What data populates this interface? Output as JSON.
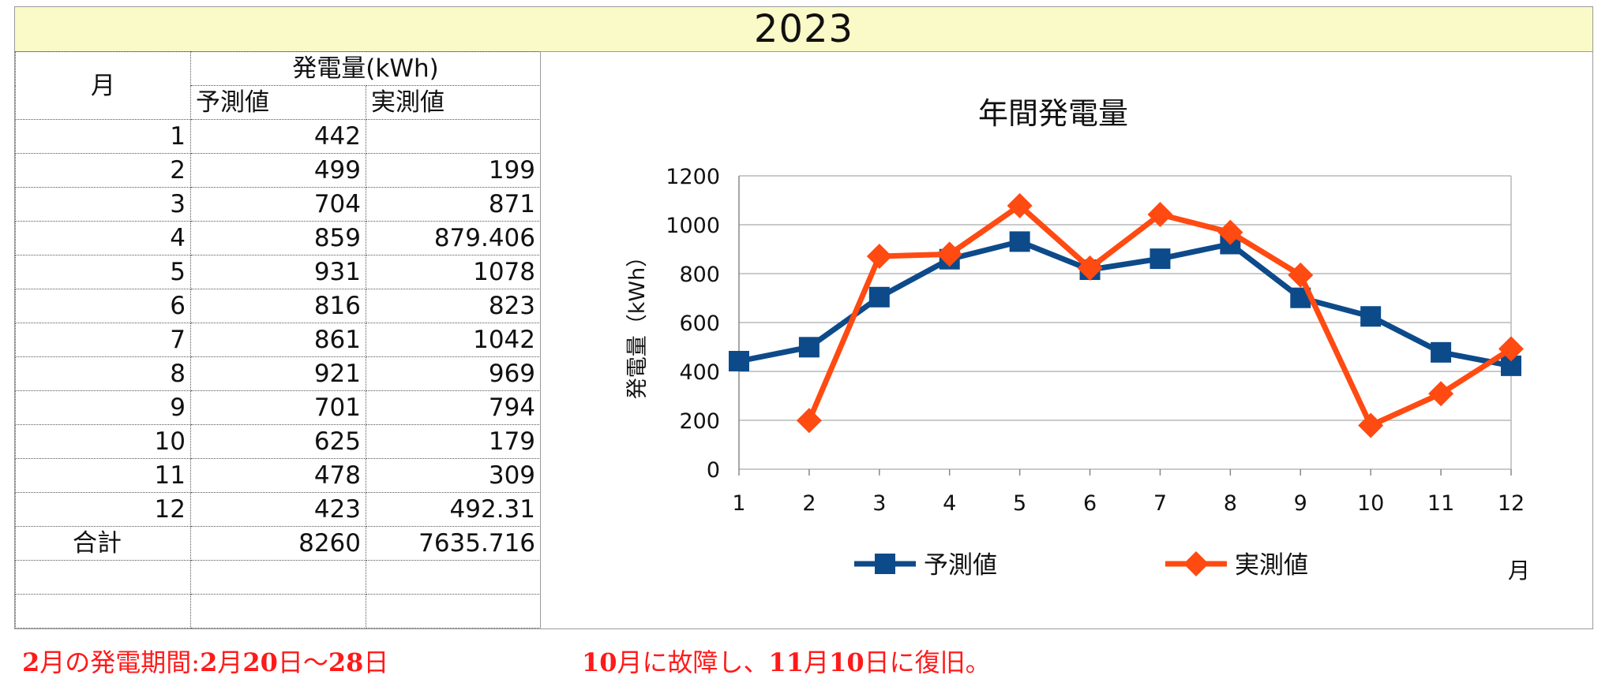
{
  "year_title": "2023",
  "table": {
    "month_header": "月",
    "group_header": "発電量(kWh)",
    "forecast_header": "予測値",
    "actual_header": "実測値",
    "rows": [
      {
        "month": "1",
        "forecast": "442",
        "actual": ""
      },
      {
        "month": "2",
        "forecast": "499",
        "actual": "199"
      },
      {
        "month": "3",
        "forecast": "704",
        "actual": "871"
      },
      {
        "month": "4",
        "forecast": "859",
        "actual": "879.406"
      },
      {
        "month": "5",
        "forecast": "931",
        "actual": "1078"
      },
      {
        "month": "6",
        "forecast": "816",
        "actual": "823"
      },
      {
        "month": "7",
        "forecast": "861",
        "actual": "1042"
      },
      {
        "month": "8",
        "forecast": "921",
        "actual": "969"
      },
      {
        "month": "9",
        "forecast": "701",
        "actual": "794"
      },
      {
        "month": "10",
        "forecast": "625",
        "actual": "179"
      },
      {
        "month": "11",
        "forecast": "478",
        "actual": "309"
      },
      {
        "month": "12",
        "forecast": "423",
        "actual": "492.31"
      }
    ],
    "total_label": "合計",
    "total_forecast": "8260",
    "total_actual": "7635.716"
  },
  "chart_data": {
    "type": "line",
    "title": "年間発電量",
    "xlabel": "月",
    "ylabel": "発電量（kWh）",
    "categories": [
      "1",
      "2",
      "3",
      "4",
      "5",
      "6",
      "7",
      "8",
      "9",
      "10",
      "11",
      "12"
    ],
    "ylim": [
      0,
      1200
    ],
    "yticks": [
      0,
      200,
      400,
      600,
      800,
      1000,
      1200
    ],
    "grid": true,
    "legend_position": "bottom",
    "series": [
      {
        "name": "予測値",
        "color": "#0d4a8a",
        "marker": "square",
        "values": [
          442,
          499,
          704,
          859,
          931,
          816,
          861,
          921,
          701,
          625,
          478,
          423
        ]
      },
      {
        "name": "実測値",
        "color": "#ff4a12",
        "marker": "diamond",
        "values": [
          null,
          199,
          871,
          879.406,
          1078,
          823,
          1042,
          969,
          794,
          179,
          309,
          492.31
        ]
      }
    ]
  },
  "notes": {
    "left_parts": [
      "2",
      "月の発電期間:",
      "2",
      "月",
      "20",
      "日～",
      "28",
      "日"
    ],
    "right_parts": [
      "10",
      "月に故障し、",
      "11",
      "月",
      "10",
      "日に復旧。"
    ]
  }
}
